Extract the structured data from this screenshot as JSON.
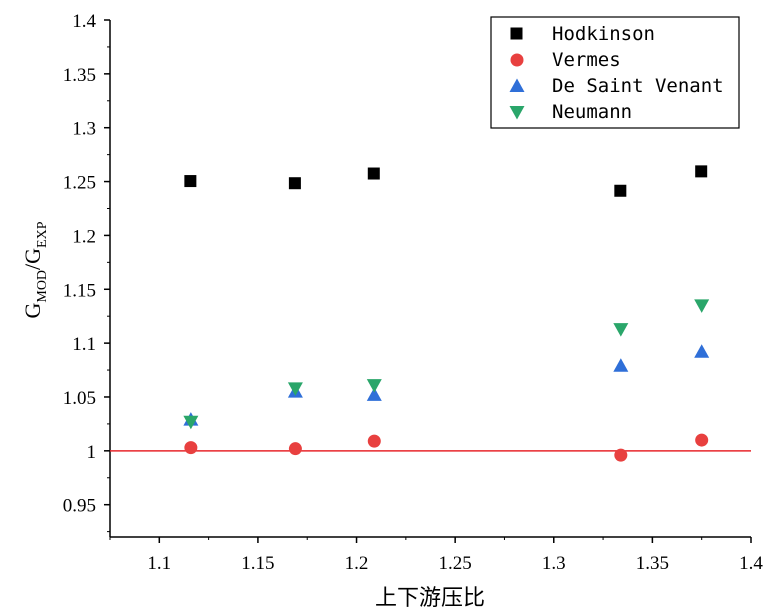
{
  "chart_data": {
    "type": "scatter",
    "xlabel": "上下游压比",
    "ylabel": {
      "base": "G",
      "sub1": "MOD",
      "slash": "/",
      "base2": "G",
      "sub2": "EXP"
    },
    "xlim": [
      1.075,
      1.4
    ],
    "ylim": [
      0.92,
      1.4
    ],
    "x_ticks": [
      "1.1",
      "1.15",
      "1.2",
      "1.25",
      "1.3",
      "1.35",
      "1.4"
    ],
    "y_ticks": [
      "0.95",
      "1",
      "1.05",
      "1.1",
      "1.15",
      "1.2",
      "1.25",
      "1.3",
      "1.35",
      "1.4"
    ],
    "reference_line": {
      "y": 1.0,
      "color": "#e8262b"
    },
    "legend_position": "top-right",
    "series": [
      {
        "name": "Hodkinson",
        "marker": "square",
        "color": "#000000",
        "x": [
          1.116,
          1.169,
          1.209,
          1.334,
          1.375
        ],
        "y": [
          1.25,
          1.248,
          1.257,
          1.241,
          1.259
        ]
      },
      {
        "name": "Vermes",
        "marker": "circle",
        "color": "#e8403f",
        "x": [
          1.116,
          1.169,
          1.209,
          1.334,
          1.375
        ],
        "y": [
          1.003,
          1.002,
          1.009,
          0.996,
          1.01
        ]
      },
      {
        "name": "De Saint Venant",
        "marker": "triangle-up",
        "color": "#2f6fd8",
        "x": [
          1.116,
          1.169,
          1.209,
          1.334,
          1.375
        ],
        "y": [
          1.029,
          1.055,
          1.052,
          1.079,
          1.092
        ]
      },
      {
        "name": "Neumann",
        "marker": "triangle-down",
        "color": "#2aa66a",
        "x": [
          1.116,
          1.169,
          1.209,
          1.334,
          1.375
        ],
        "y": [
          1.027,
          1.058,
          1.061,
          1.113,
          1.135
        ]
      }
    ]
  }
}
